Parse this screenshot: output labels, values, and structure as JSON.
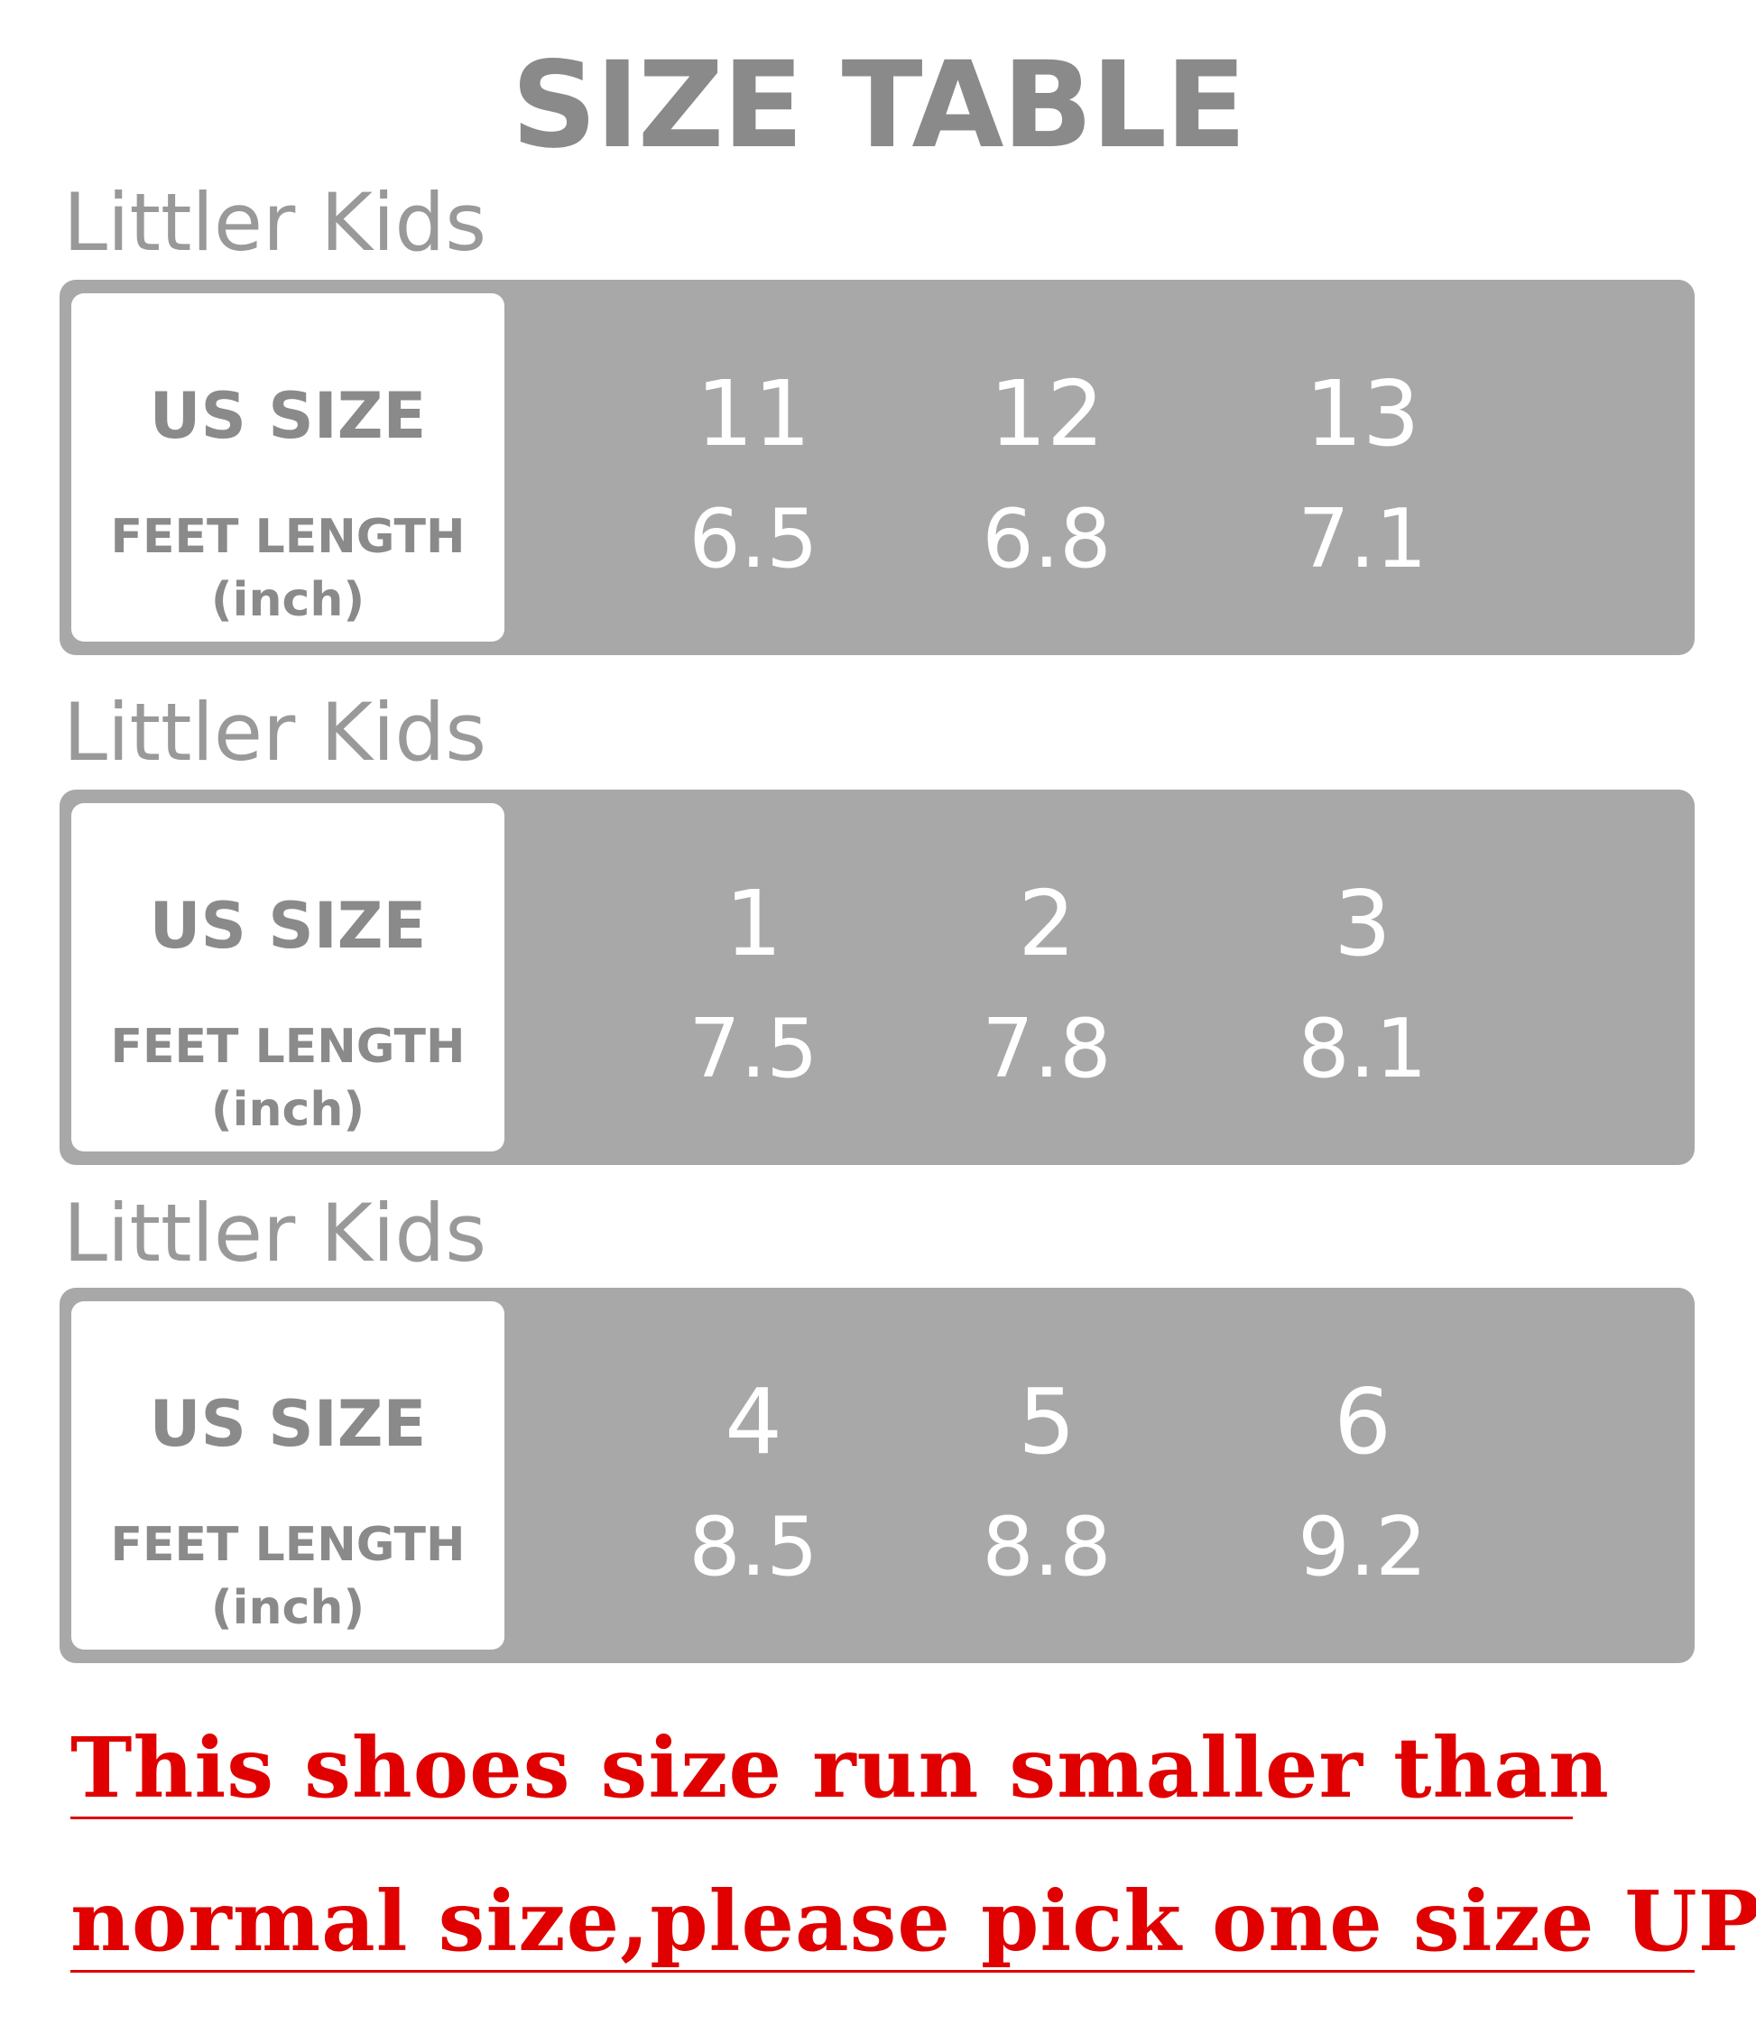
{
  "title": "SIZE TABLE",
  "sections": [
    {
      "label": "Littler Kids",
      "us_size_label": "US SIZE",
      "feet_length_label": "FEET LENGTH",
      "unit_label": "(inch)",
      "sizes": [
        "11",
        "12",
        "13"
      ],
      "lengths": [
        "6.5",
        "6.8",
        "7.1"
      ]
    },
    {
      "label": "Littler Kids",
      "us_size_label": "US SIZE",
      "feet_length_label": "FEET LENGTH",
      "unit_label": "(inch)",
      "sizes": [
        "1",
        "2",
        "3"
      ],
      "lengths": [
        "7.5",
        "7.8",
        "8.1"
      ]
    },
    {
      "label": "Littler Kids",
      "us_size_label": "US SIZE",
      "feet_length_label": "FEET LENGTH",
      "unit_label": "(inch)",
      "sizes": [
        "4",
        "5",
        "6"
      ],
      "lengths": [
        "8.5",
        "8.8",
        "9.2"
      ]
    }
  ],
  "note": {
    "line1": "This shoes size run smaller than",
    "line2": "normal size,please pick one size UP!",
    "color": "#e00000"
  },
  "colors": {
    "panel": "#a9a8a9",
    "title": "#8a8a8a"
  }
}
